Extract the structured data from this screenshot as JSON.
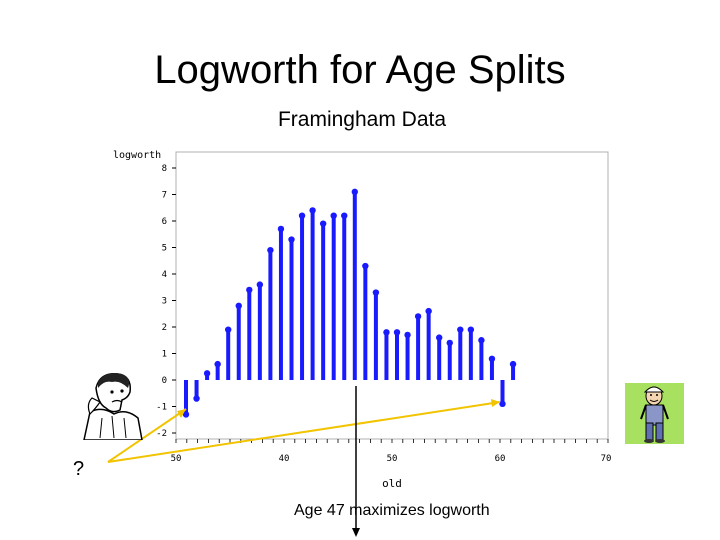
{
  "slide": {
    "title": "Logworth for Age Splits",
    "caption": "Age 47 maximizes logworth",
    "question_mark": "?"
  },
  "figures": {
    "left": "worried-man-icon",
    "right": "cartoon-farmer-icon"
  },
  "colors": {
    "bar": "#1a1aff",
    "arrow": "#f2c400",
    "axis": "#000000",
    "right_bg": "#a8e060"
  },
  "chart_data": {
    "type": "bar",
    "title": "Framingham Data",
    "ylabel": "logworth",
    "xlabel": "old",
    "xlim": [
      50,
      70
    ],
    "ylim": [
      -2,
      8
    ],
    "x_ticks": [
      "50",
      "40",
      "50",
      "60",
      "70"
    ],
    "y_ticks": [
      "-2",
      "-1",
      "0",
      "1",
      "2",
      "3",
      "4",
      "5",
      "6",
      "7",
      "8"
    ],
    "bars": [
      {
        "age": 31,
        "logworth": -1.3
      },
      {
        "age": 32,
        "logworth": -0.7
      },
      {
        "age": 33,
        "logworth": 0.25
      },
      {
        "age": 34,
        "logworth": 0.6
      },
      {
        "age": 35,
        "logworth": 1.9
      },
      {
        "age": 36,
        "logworth": 2.8
      },
      {
        "age": 37,
        "logworth": 3.4
      },
      {
        "age": 38,
        "logworth": 3.6
      },
      {
        "age": 39,
        "logworth": 4.9
      },
      {
        "age": 40,
        "logworth": 5.7
      },
      {
        "age": 41,
        "logworth": 5.3
      },
      {
        "age": 42,
        "logworth": 6.2
      },
      {
        "age": 43,
        "logworth": 6.4
      },
      {
        "age": 44,
        "logworth": 5.9
      },
      {
        "age": 45,
        "logworth": 6.2
      },
      {
        "age": 46,
        "logworth": 6.2
      },
      {
        "age": 47,
        "logworth": 7.1
      },
      {
        "age": 48,
        "logworth": 4.3
      },
      {
        "age": 49,
        "logworth": 3.3
      },
      {
        "age": 50,
        "logworth": 1.8
      },
      {
        "age": 51,
        "logworth": 1.8
      },
      {
        "age": 52,
        "logworth": 1.7
      },
      {
        "age": 53,
        "logworth": 2.4
      },
      {
        "age": 54,
        "logworth": 2.6
      },
      {
        "age": 55,
        "logworth": 1.6
      },
      {
        "age": 56,
        "logworth": 1.4
      },
      {
        "age": 57,
        "logworth": 1.9
      },
      {
        "age": 58,
        "logworth": 1.9
      },
      {
        "age": 59,
        "logworth": 1.5
      },
      {
        "age": 60,
        "logworth": 0.8
      },
      {
        "age": 61,
        "logworth": -0.9
      },
      {
        "age": 62,
        "logworth": 0.6
      }
    ]
  }
}
